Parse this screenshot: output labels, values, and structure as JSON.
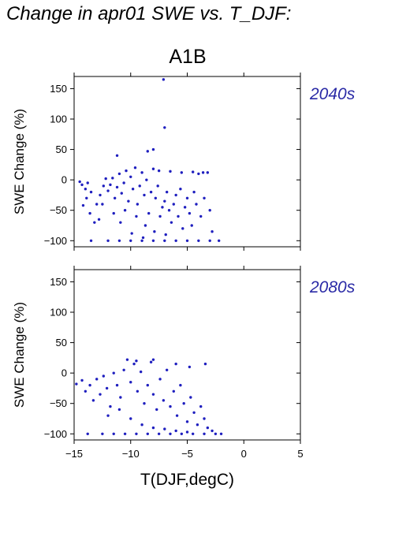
{
  "page": {
    "title": "Change in apr01 SWE vs. T_DJF:",
    "scenario": "A1B"
  },
  "colors": {
    "points": "#1f1fbf",
    "period_label": "#2a2aa6"
  },
  "chart_data": [
    {
      "type": "scatter",
      "period_label": "2040s",
      "xlabel": "",
      "ylabel": "SWE Change (%)",
      "xlim": [
        -15,
        5
      ],
      "ylim": [
        -110,
        170
      ],
      "x_ticks": [
        -15,
        -10,
        -5,
        0,
        5
      ],
      "x_tick_labels": [],
      "y_ticks": [
        -100,
        -50,
        0,
        50,
        100,
        150
      ],
      "y_tick_labels": [
        "−100",
        "−50",
        "0",
        "50",
        "100",
        "150"
      ],
      "grid": false,
      "points": [
        [
          -7.1,
          165
        ],
        [
          -7.0,
          86
        ],
        [
          -8.5,
          47
        ],
        [
          -8.0,
          50
        ],
        [
          -11.2,
          40
        ],
        [
          -14.5,
          -3
        ],
        [
          -14.3,
          -8
        ],
        [
          -14.0,
          -15
        ],
        [
          -13.8,
          -5
        ],
        [
          -13.5,
          -20
        ],
        [
          -14.2,
          -42
        ],
        [
          -13.9,
          -30
        ],
        [
          -13.6,
          -55
        ],
        [
          -13.2,
          -70
        ],
        [
          -12.8,
          -65
        ],
        [
          -13.0,
          -40
        ],
        [
          -12.7,
          -25
        ],
        [
          -12.4,
          -10
        ],
        [
          -12.2,
          2
        ],
        [
          -12.0,
          -18
        ],
        [
          -11.8,
          -8
        ],
        [
          -11.6,
          3
        ],
        [
          -11.4,
          -30
        ],
        [
          -11.2,
          -12
        ],
        [
          -11.0,
          10
        ],
        [
          -10.8,
          -22
        ],
        [
          -10.6,
          -5
        ],
        [
          -10.4,
          15
        ],
        [
          -10.2,
          -35
        ],
        [
          -10.0,
          5
        ],
        [
          -9.8,
          -15
        ],
        [
          -9.6,
          20
        ],
        [
          -9.4,
          -40
        ],
        [
          -9.2,
          -10
        ],
        [
          -9.0,
          12
        ],
        [
          -8.8,
          -25
        ],
        [
          -8.6,
          0
        ],
        [
          -8.4,
          -55
        ],
        [
          -8.2,
          -20
        ],
        [
          -8.0,
          18
        ],
        [
          -7.8,
          -30
        ],
        [
          -7.6,
          -10
        ],
        [
          -7.4,
          -60
        ],
        [
          -7.2,
          -45
        ],
        [
          -7.0,
          -35
        ],
        [
          -6.8,
          -20
        ],
        [
          -6.6,
          -50
        ],
        [
          -6.4,
          -70
        ],
        [
          -6.2,
          -40
        ],
        [
          -6.0,
          -25
        ],
        [
          -5.8,
          -60
        ],
        [
          -5.6,
          -15
        ],
        [
          -5.4,
          -80
        ],
        [
          -5.2,
          -45
        ],
        [
          -5.0,
          -30
        ],
        [
          -4.8,
          -55
        ],
        [
          -4.6,
          -75
        ],
        [
          -4.4,
          -20
        ],
        [
          -4.2,
          -40
        ],
        [
          -4.0,
          10
        ],
        [
          -3.8,
          -60
        ],
        [
          -3.5,
          -30
        ],
        [
          -3.2,
          12
        ],
        [
          -3.0,
          -50
        ],
        [
          -2.8,
          -85
        ],
        [
          -5.5,
          12
        ],
        [
          -6.5,
          14
        ],
        [
          -4.5,
          13
        ],
        [
          -3.6,
          12
        ],
        [
          -7.5,
          15
        ],
        [
          -9.5,
          -60
        ],
        [
          -10.5,
          -50
        ],
        [
          -8.7,
          -75
        ],
        [
          -7.9,
          -85
        ],
        [
          -6.9,
          -90
        ],
        [
          -11.5,
          -55
        ],
        [
          -12.5,
          -40
        ],
        [
          -10.9,
          -70
        ],
        [
          -9.9,
          -88
        ],
        [
          -8.9,
          -95
        ],
        [
          -13.5,
          -100
        ],
        [
          -12.0,
          -100
        ],
        [
          -11.0,
          -100
        ],
        [
          -10.0,
          -100
        ],
        [
          -9.0,
          -100
        ],
        [
          -8.0,
          -100
        ],
        [
          -7.0,
          -100
        ],
        [
          -6.0,
          -100
        ],
        [
          -5.0,
          -100
        ],
        [
          -4.0,
          -100
        ],
        [
          -3.0,
          -100
        ],
        [
          -2.2,
          -100
        ]
      ]
    },
    {
      "type": "scatter",
      "period_label": "2080s",
      "xlabel": "T(DJF,degC)",
      "ylabel": "SWE Change (%)",
      "xlim": [
        -15,
        5
      ],
      "ylim": [
        -110,
        170
      ],
      "x_ticks": [
        -15,
        -10,
        -5,
        0,
        5
      ],
      "x_tick_labels": [
        "−15",
        "−10",
        "−5",
        "0",
        "5"
      ],
      "y_ticks": [
        -100,
        -50,
        0,
        50,
        100,
        150
      ],
      "y_tick_labels": [
        "−100",
        "−50",
        "0",
        "50",
        "100",
        "150"
      ],
      "grid": false,
      "points": [
        [
          -14.8,
          -18
        ],
        [
          -14.3,
          -12
        ],
        [
          -14.0,
          -30
        ],
        [
          -13.6,
          -20
        ],
        [
          -13.3,
          -45
        ],
        [
          -13.0,
          -10
        ],
        [
          -12.7,
          -35
        ],
        [
          -12.4,
          -5
        ],
        [
          -12.1,
          -25
        ],
        [
          -11.8,
          -55
        ],
        [
          -11.5,
          0
        ],
        [
          -11.2,
          -20
        ],
        [
          -10.9,
          -40
        ],
        [
          -10.6,
          5
        ],
        [
          -10.3,
          22
        ],
        [
          -10.0,
          -15
        ],
        [
          -9.7,
          15
        ],
        [
          -9.4,
          -30
        ],
        [
          -9.1,
          2
        ],
        [
          -8.8,
          -50
        ],
        [
          -8.5,
          -20
        ],
        [
          -8.2,
          18
        ],
        [
          -8.0,
          -35
        ],
        [
          -7.7,
          -60
        ],
        [
          -7.4,
          -10
        ],
        [
          -7.1,
          -45
        ],
        [
          -6.8,
          5
        ],
        [
          -6.5,
          -55
        ],
        [
          -6.2,
          -30
        ],
        [
          -5.9,
          -70
        ],
        [
          -5.6,
          -20
        ],
        [
          -5.3,
          -50
        ],
        [
          -5.0,
          -80
        ],
        [
          -4.7,
          -40
        ],
        [
          -4.4,
          -65
        ],
        [
          -4.1,
          -85
        ],
        [
          -3.8,
          -55
        ],
        [
          -3.5,
          -75
        ],
        [
          -3.2,
          -90
        ],
        [
          -2.8,
          -95
        ],
        [
          -3.4,
          15
        ],
        [
          -4.8,
          10
        ],
        [
          -6.0,
          15
        ],
        [
          -8.0,
          22
        ],
        [
          -9.5,
          20
        ],
        [
          -11.0,
          -60
        ],
        [
          -12.0,
          -70
        ],
        [
          -10.0,
          -75
        ],
        [
          -9.0,
          -85
        ],
        [
          -8.0,
          -90
        ],
        [
          -7.0,
          -92
        ],
        [
          -6.0,
          -95
        ],
        [
          -5.0,
          -97
        ],
        [
          -13.8,
          -100
        ],
        [
          -12.5,
          -100
        ],
        [
          -11.5,
          -100
        ],
        [
          -10.5,
          -100
        ],
        [
          -9.5,
          -100
        ],
        [
          -8.5,
          -100
        ],
        [
          -7.5,
          -100
        ],
        [
          -6.5,
          -100
        ],
        [
          -5.5,
          -100
        ],
        [
          -4.5,
          -100
        ],
        [
          -3.5,
          -100
        ],
        [
          -2.5,
          -100
        ],
        [
          -2.0,
          -100
        ]
      ]
    }
  ]
}
